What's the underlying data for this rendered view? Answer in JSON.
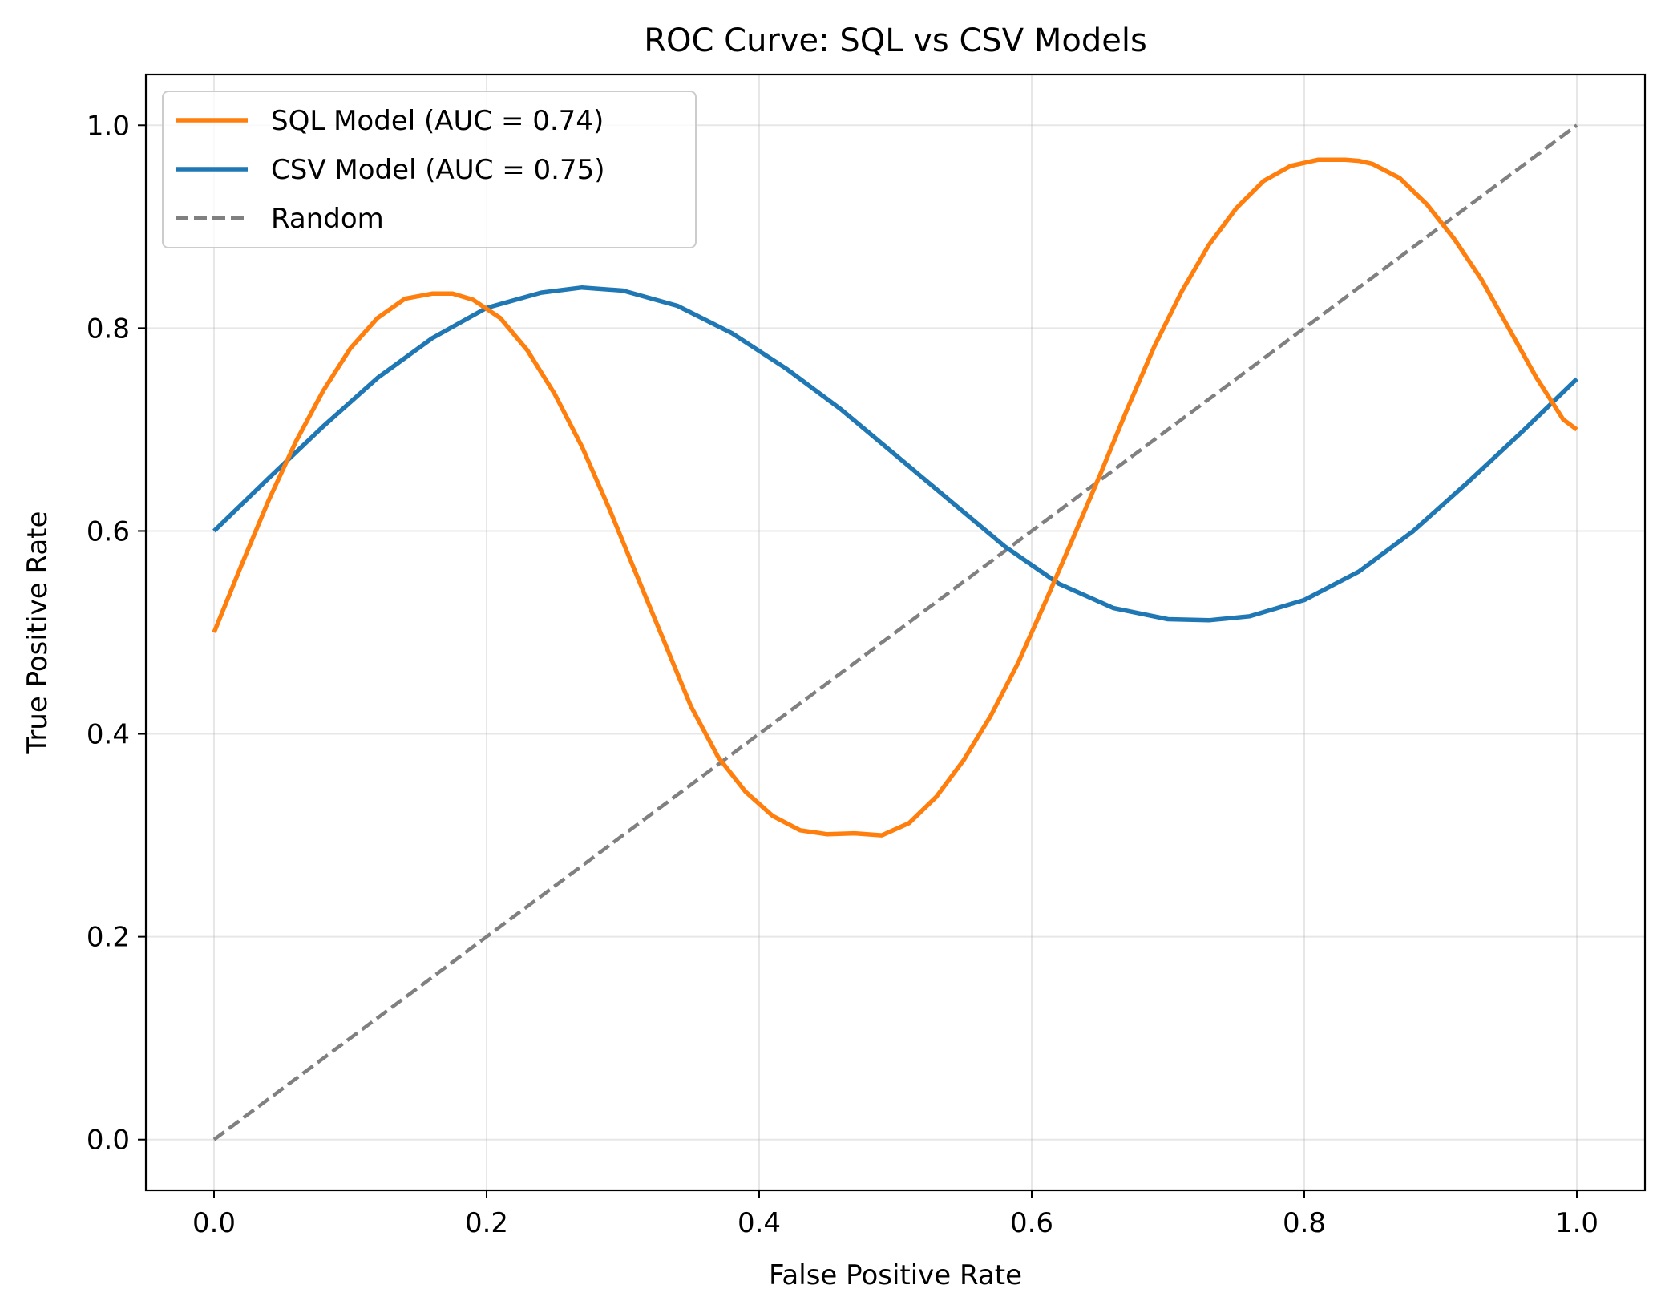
{
  "chart_data": {
    "type": "line",
    "title": "ROC Curve: SQL vs CSV Models",
    "xlabel": "False Positive Rate",
    "ylabel": "True Positive Rate",
    "xlim": [
      -0.05,
      1.05
    ],
    "ylim": [
      -0.05,
      1.05
    ],
    "xticks": [
      0.0,
      0.2,
      0.4,
      0.6,
      0.8,
      1.0
    ],
    "xtick_labels": [
      "0.0",
      "0.2",
      "0.4",
      "0.6",
      "0.8",
      "1.0"
    ],
    "yticks": [
      0.0,
      0.2,
      0.4,
      0.6,
      0.8,
      1.0
    ],
    "ytick_labels": [
      "0.0",
      "0.2",
      "0.4",
      "0.6",
      "0.8",
      "1.0"
    ],
    "grid": true,
    "legend_position": "upper-left",
    "series": [
      {
        "name": "SQL Model (AUC = 0.74)",
        "color": "#ff7f0e",
        "style": "solid",
        "x": [
          0.0,
          0.02,
          0.04,
          0.06,
          0.08,
          0.1,
          0.12,
          0.14,
          0.16,
          0.175,
          0.19,
          0.21,
          0.23,
          0.25,
          0.27,
          0.29,
          0.31,
          0.33,
          0.35,
          0.37,
          0.39,
          0.41,
          0.43,
          0.45,
          0.47,
          0.49,
          0.51,
          0.53,
          0.55,
          0.57,
          0.59,
          0.61,
          0.63,
          0.65,
          0.67,
          0.69,
          0.71,
          0.73,
          0.75,
          0.77,
          0.79,
          0.81,
          0.83,
          0.84,
          0.85,
          0.87,
          0.89,
          0.91,
          0.93,
          0.95,
          0.97,
          0.99,
          1.0
        ],
        "y": [
          0.5,
          0.566,
          0.63,
          0.688,
          0.738,
          0.78,
          0.81,
          0.829,
          0.834,
          0.834,
          0.828,
          0.81,
          0.778,
          0.735,
          0.683,
          0.622,
          0.557,
          0.492,
          0.427,
          0.377,
          0.343,
          0.319,
          0.305,
          0.301,
          0.302,
          0.3,
          0.312,
          0.338,
          0.374,
          0.418,
          0.47,
          0.53,
          0.592,
          0.655,
          0.72,
          0.782,
          0.836,
          0.882,
          0.918,
          0.945,
          0.96,
          0.966,
          0.966,
          0.965,
          0.962,
          0.948,
          0.922,
          0.888,
          0.848,
          0.8,
          0.752,
          0.71,
          0.7
        ]
      },
      {
        "name": "CSV Model (AUC = 0.75)",
        "color": "#1f77b4",
        "style": "solid",
        "x": [
          0.0,
          0.04,
          0.08,
          0.12,
          0.16,
          0.2,
          0.24,
          0.27,
          0.3,
          0.34,
          0.38,
          0.42,
          0.46,
          0.5,
          0.54,
          0.58,
          0.62,
          0.66,
          0.7,
          0.73,
          0.76,
          0.8,
          0.84,
          0.88,
          0.92,
          0.96,
          1.0
        ],
        "y": [
          0.6,
          0.652,
          0.703,
          0.751,
          0.79,
          0.82,
          0.835,
          0.84,
          0.837,
          0.822,
          0.795,
          0.76,
          0.72,
          0.675,
          0.63,
          0.585,
          0.548,
          0.524,
          0.513,
          0.512,
          0.516,
          0.532,
          0.56,
          0.6,
          0.648,
          0.698,
          0.75
        ]
      },
      {
        "name": "Random",
        "color": "#808080",
        "style": "dashed",
        "x": [
          0.0,
          1.0
        ],
        "y": [
          0.0,
          1.0
        ]
      }
    ]
  }
}
